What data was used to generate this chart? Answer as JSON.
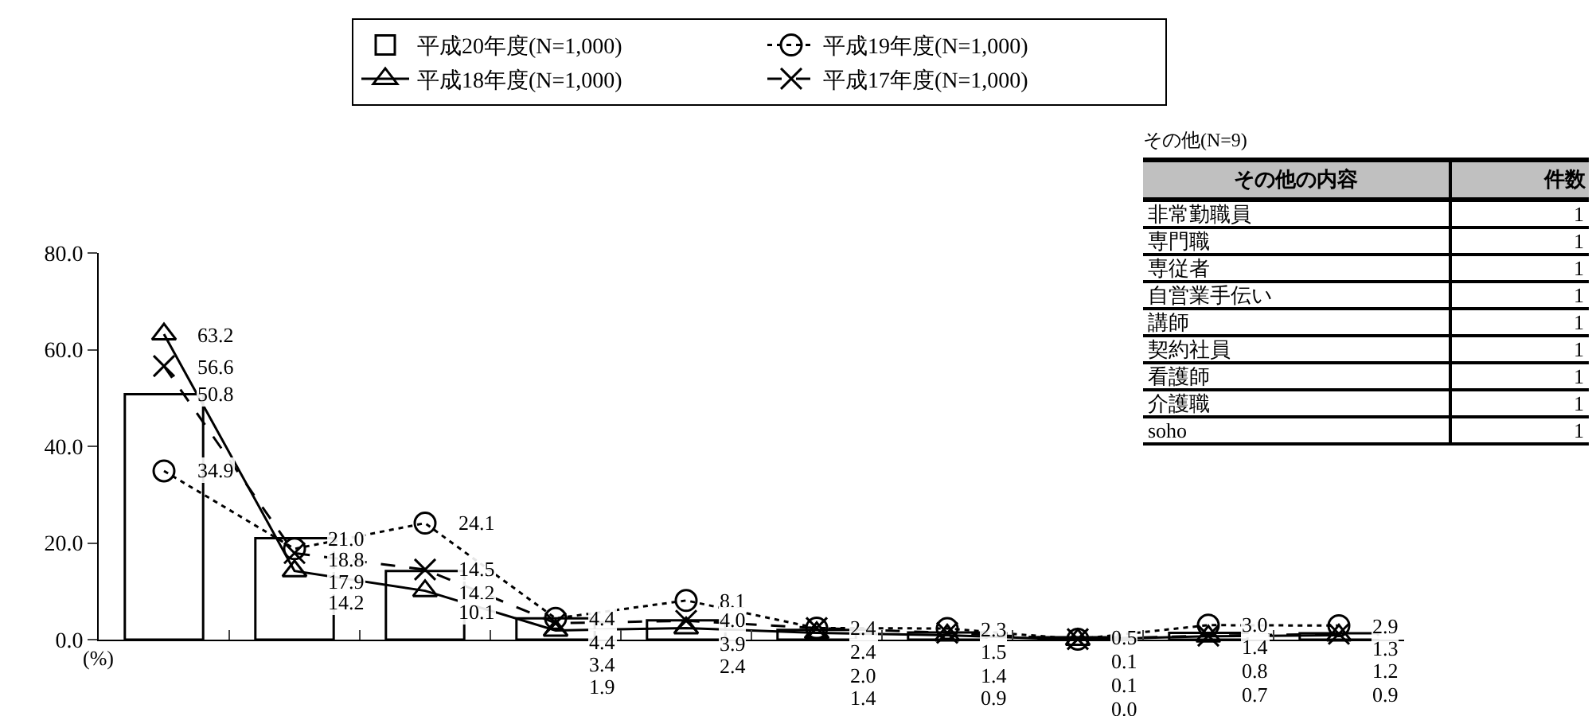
{
  "chart_data": [
    {
      "type": "bar",
      "categories": [
        null,
        null,
        null,
        null,
        null,
        null,
        null,
        null,
        null,
        null
      ],
      "series": [
        {
          "name": "平成20年度(N=1,000)",
          "color": "#ffffff",
          "values": [
            50.8,
            21.0,
            14.2,
            4.4,
            4.0,
            2.0,
            1.5,
            0.5,
            1.4,
            1.3
          ],
          "value_labels": [
            "50.8",
            "21.0",
            "14.2",
            "4.4",
            "4.0",
            "2.0",
            "1.5",
            "0.5",
            "1.4",
            "1.3"
          ]
        },
        {
          "name": "平成19年度(N=1,000)",
          "type": "line",
          "color": "#000000",
          "marker": "circle",
          "line_style": "dotted",
          "values": [
            34.9,
            18.8,
            24.1,
            4.4,
            8.1,
            2.4,
            2.3,
            0.1,
            3.0,
            2.9
          ],
          "value_labels": [
            "34.9",
            "18.8",
            "24.1",
            "4.4",
            "8.1",
            "2.4",
            "2.3",
            "0.1",
            "3.0",
            "2.9"
          ]
        },
        {
          "name": "平成18年度(N=1,000)",
          "type": "line",
          "color": "#000000",
          "marker": "triangle",
          "line_style": "solid",
          "values": [
            63.2,
            14.2,
            10.1,
            1.9,
            2.4,
            1.4,
            0.9,
            0.0,
            0.7,
            0.9
          ],
          "value_labels": [
            "63.2",
            "14.2",
            "10.1",
            "1.9",
            "2.4",
            "1.4",
            "0.9",
            "0.0",
            "0.7",
            "0.9"
          ]
        },
        {
          "name": "平成17年度(N=1,000)",
          "type": "line",
          "color": "#000000",
          "marker": "cross",
          "line_style": "dashed",
          "values": [
            56.6,
            17.9,
            14.5,
            3.4,
            3.9,
            2.4,
            1.4,
            0.1,
            0.8,
            1.2
          ],
          "value_labels": [
            "56.6",
            "17.9",
            "14.5",
            "3.4",
            "3.9",
            "2.4",
            "1.4",
            "0.1",
            "0.8",
            "1.2"
          ]
        }
      ],
      "ylim": [
        0,
        80
      ],
      "yticks": [
        {
          "value": 0,
          "label": "0.0"
        },
        {
          "value": 20,
          "label": "20.0"
        },
        {
          "value": 40,
          "label": "40.0"
        },
        {
          "value": 60,
          "label": "60.0"
        },
        {
          "value": 80,
          "label": "80.0"
        }
      ],
      "grid": false,
      "legend": "top",
      "annotations": [
        "(%)"
      ]
    },
    {
      "type": "other",
      "title": "その他(N=9)",
      "xlabel": "その他の内容",
      "ylabel": "件数",
      "categories": [
        "非常勤職員",
        "専門職",
        "専従者",
        "自営業手伝い",
        "講師",
        "契約社員",
        "看護師",
        "介護職",
        "soho"
      ],
      "values": [
        1,
        1,
        1,
        1,
        1,
        1,
        1,
        1,
        1
      ],
      "data_labels": true
    }
  ]
}
